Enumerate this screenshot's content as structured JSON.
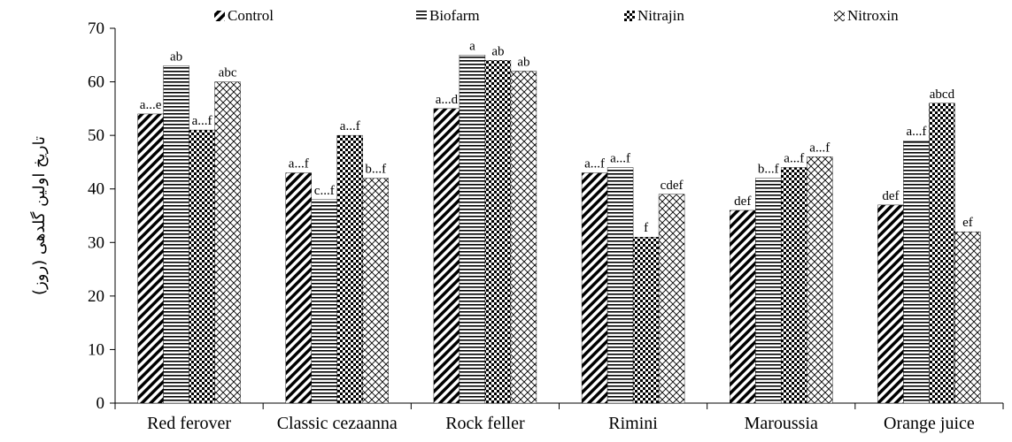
{
  "chart_data": {
    "type": "bar",
    "title": "",
    "xlabel": "",
    "ylabel": "تاریخ اولین گلدهی (روز)",
    "ylim": [
      0,
      70
    ],
    "yticks": [
      0,
      10,
      20,
      30,
      40,
      50,
      60,
      70
    ],
    "grid": false,
    "legend_position": "top",
    "categories": [
      "Red ferover",
      "Classic cezaanna",
      "Rock feller",
      "Rimini",
      "Maroussia",
      "Orange juice"
    ],
    "series": [
      {
        "name": "Control",
        "pattern": "diagonal-stripes",
        "values": [
          54,
          43,
          55,
          43,
          36,
          37
        ],
        "labels": [
          "a...e",
          "a...f",
          "a...d",
          "a...f",
          "def",
          "def"
        ]
      },
      {
        "name": "Biofarm",
        "pattern": "horizontal-lines",
        "values": [
          63,
          38,
          65,
          44,
          42,
          49
        ],
        "labels": [
          "ab",
          "c...f",
          "a",
          "a...f",
          "b...f",
          "a...f"
        ]
      },
      {
        "name": "Nitrajin",
        "pattern": "checkerboard",
        "values": [
          51,
          50,
          64,
          31,
          44,
          56
        ],
        "labels": [
          "a...f",
          "a...f",
          "ab",
          "f",
          "a...f",
          "abcd"
        ]
      },
      {
        "name": "Nitroxin",
        "pattern": "crosshatch",
        "values": [
          60,
          42,
          62,
          39,
          46,
          32
        ],
        "labels": [
          "abc",
          "b...f",
          "ab",
          "cdef",
          "a...f",
          "ef"
        ]
      }
    ],
    "colors": {
      "ink": "#000000",
      "background": "#ffffff"
    }
  }
}
